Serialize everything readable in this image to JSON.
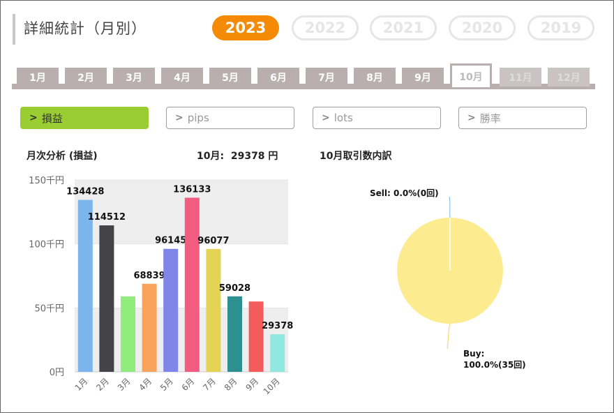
{
  "page_title": "詳細統計（月別）",
  "years": [
    "2023",
    "2022",
    "2021",
    "2020",
    "2019"
  ],
  "months": [
    "1月",
    "2月",
    "3月",
    "4月",
    "5月",
    "6月",
    "7月",
    "8月",
    "9月",
    "10月",
    "11月",
    "12月"
  ],
  "metrics": [
    "損益",
    "pips",
    "lots",
    "勝率"
  ],
  "monthly": {
    "title": "月次分析 (損益)",
    "summary_month": "10月:",
    "summary_value": "29378 円"
  },
  "breakdown": {
    "title": "10月取引数内訳"
  },
  "colors": {
    "accent": "#f58a07",
    "active_metric": "#9acd32",
    "tab": "#b9afaf"
  },
  "chart_data": [
    {
      "type": "bar",
      "categories": [
        "1月",
        "2月",
        "3月",
        "4月",
        "5月",
        "6月",
        "7月",
        "8月",
        "9月",
        "10月"
      ],
      "values": [
        134428,
        114512,
        59000,
        68839,
        96145,
        136133,
        96077,
        59028,
        55000,
        29378
      ],
      "data_labels": [
        "134428",
        "114512",
        "",
        "68839",
        "96145",
        "136133",
        "96077",
        "59028",
        "",
        "29378"
      ],
      "colors": [
        "#7cb5ec",
        "#434348",
        "#90ed7d",
        "#f7a35c",
        "#8085e9",
        "#f15c80",
        "#e4d354",
        "#2b908f",
        "#f45b5b",
        "#91e8e1"
      ],
      "ylim": [
        0,
        150000
      ],
      "yticks": [
        0,
        50000,
        100000,
        150000
      ],
      "ytick_labels": [
        "0円",
        "50千円",
        "100千円",
        "150千円"
      ],
      "grid": true
    },
    {
      "type": "pie",
      "slices": [
        {
          "label": "Sell:",
          "detail": "0.0%(0回)",
          "value": 0,
          "color": "#7cb5ec"
        },
        {
          "label": "Buy:",
          "detail": "100.0%(35回)",
          "value": 35,
          "color": "#fdec8f"
        }
      ]
    }
  ]
}
